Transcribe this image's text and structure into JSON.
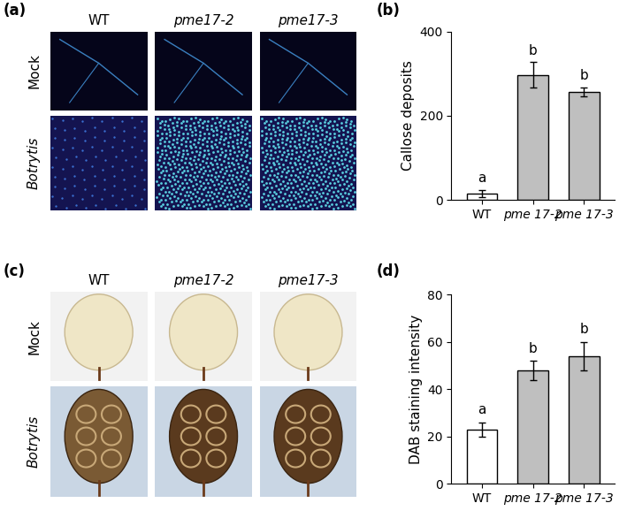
{
  "chart_data": [
    {
      "type": "bar",
      "panel_label": "(b)",
      "y_label": "Callose deposits",
      "categories": [
        "WT",
        "pme 17-2",
        "pme 17-3"
      ],
      "values": [
        15,
        297,
        257
      ],
      "errors": [
        8,
        30,
        10
      ],
      "annotations": [
        "a",
        "b",
        "b"
      ],
      "colors": [
        "#ffffff",
        "#bfbfbf",
        "#bfbfbf"
      ],
      "ylim": [
        0,
        400
      ],
      "yticks": [
        0,
        200,
        400
      ]
    },
    {
      "type": "bar",
      "panel_label": "(d)",
      "y_label": "DAB staining intensity",
      "categories": [
        "WT",
        "pme 17-2",
        "pme 17-3"
      ],
      "values": [
        23,
        48,
        54
      ],
      "errors": [
        3,
        4,
        6
      ],
      "annotations": [
        "a",
        "b",
        "b"
      ],
      "colors": [
        "#ffffff",
        "#bfbfbf",
        "#bfbfbf"
      ],
      "ylim": [
        0,
        80
      ],
      "yticks": [
        0,
        20,
        40,
        60,
        80
      ]
    }
  ],
  "image_panels": [
    {
      "panel_label": "(a)",
      "kind": "callose",
      "columns": [
        "WT",
        "pme17-2",
        "pme17-3"
      ],
      "rows": [
        "Mock",
        "Botrytis"
      ]
    },
    {
      "panel_label": "(c)",
      "kind": "dab",
      "columns": [
        "WT",
        "pme17-2",
        "pme17-3"
      ],
      "rows": [
        "Mock",
        "Botrytis"
      ]
    }
  ]
}
